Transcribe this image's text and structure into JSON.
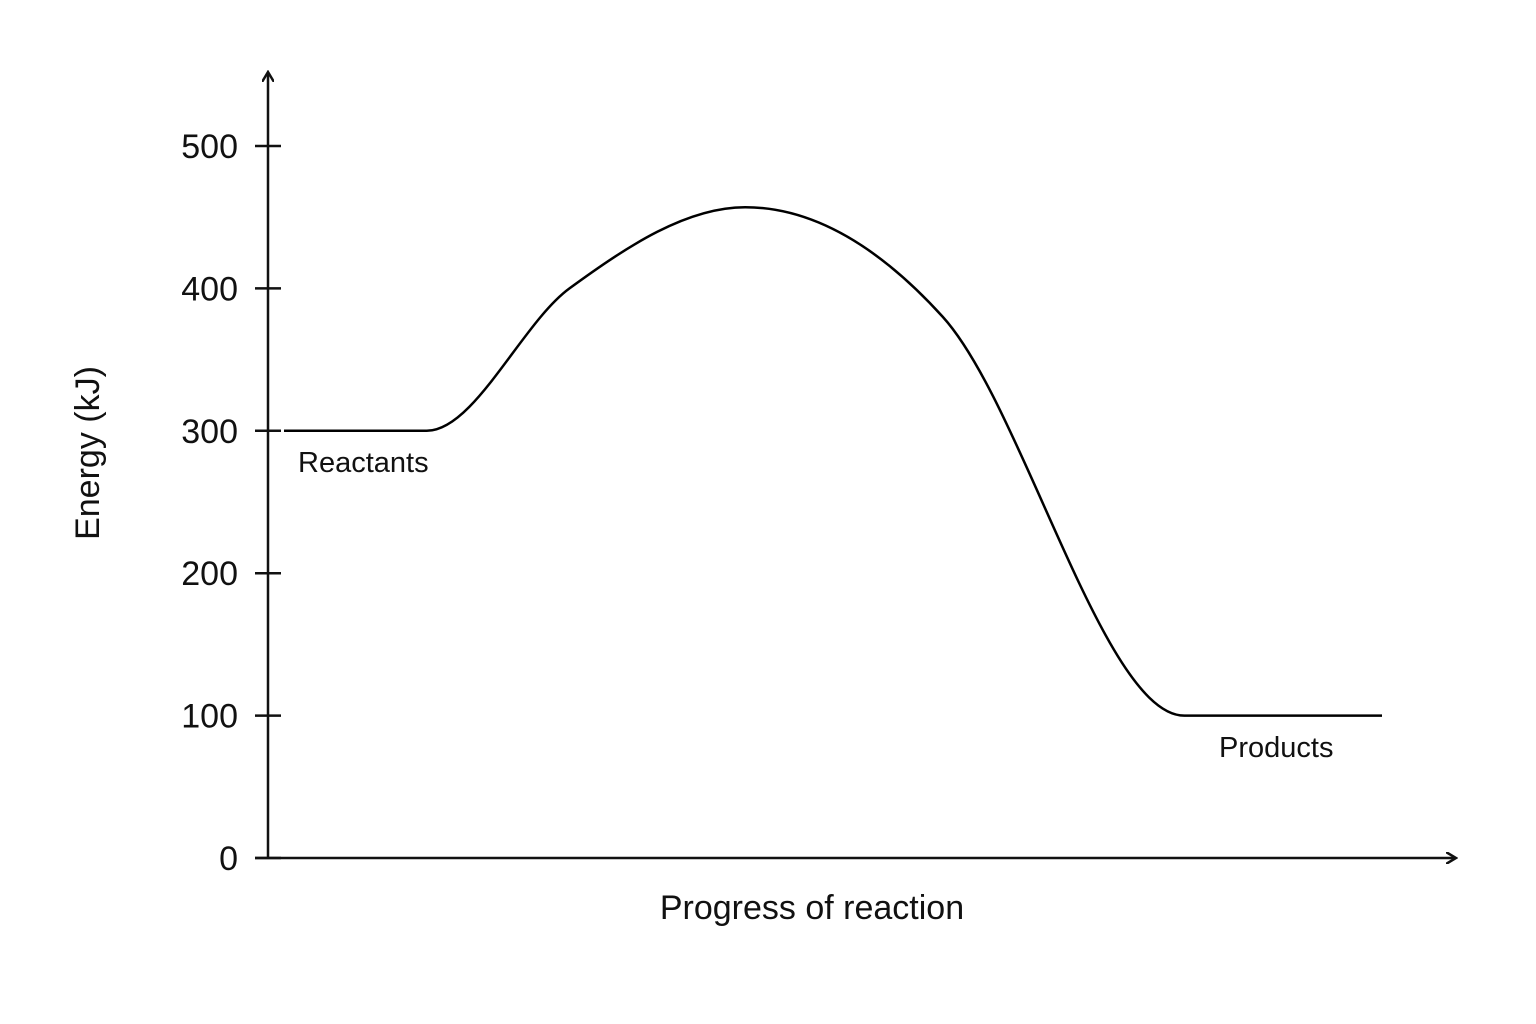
{
  "chart_data": {
    "type": "line",
    "title": "",
    "xlabel": "Progress of reaction",
    "ylabel": "Energy (kJ)",
    "ylim": [
      0,
      500
    ],
    "yticks": [
      0,
      100,
      200,
      300,
      400,
      500
    ],
    "ytick_labels": [
      "0",
      "100",
      "200",
      "300",
      "400",
      "500"
    ],
    "grid": false,
    "legend": "none",
    "line_color": "#000000",
    "series": [
      {
        "x": [
          0.0,
          0.13,
          0.26,
          0.42,
          0.6,
          0.82,
          1.0
        ],
        "y": [
          300,
          300,
          400,
          457,
          380,
          100,
          100
        ]
      }
    ],
    "annotations": [
      {
        "text": "Reactants",
        "x": 0.01,
        "y": 300
      },
      {
        "text": "Products",
        "x": 0.84,
        "y": 100
      }
    ]
  }
}
